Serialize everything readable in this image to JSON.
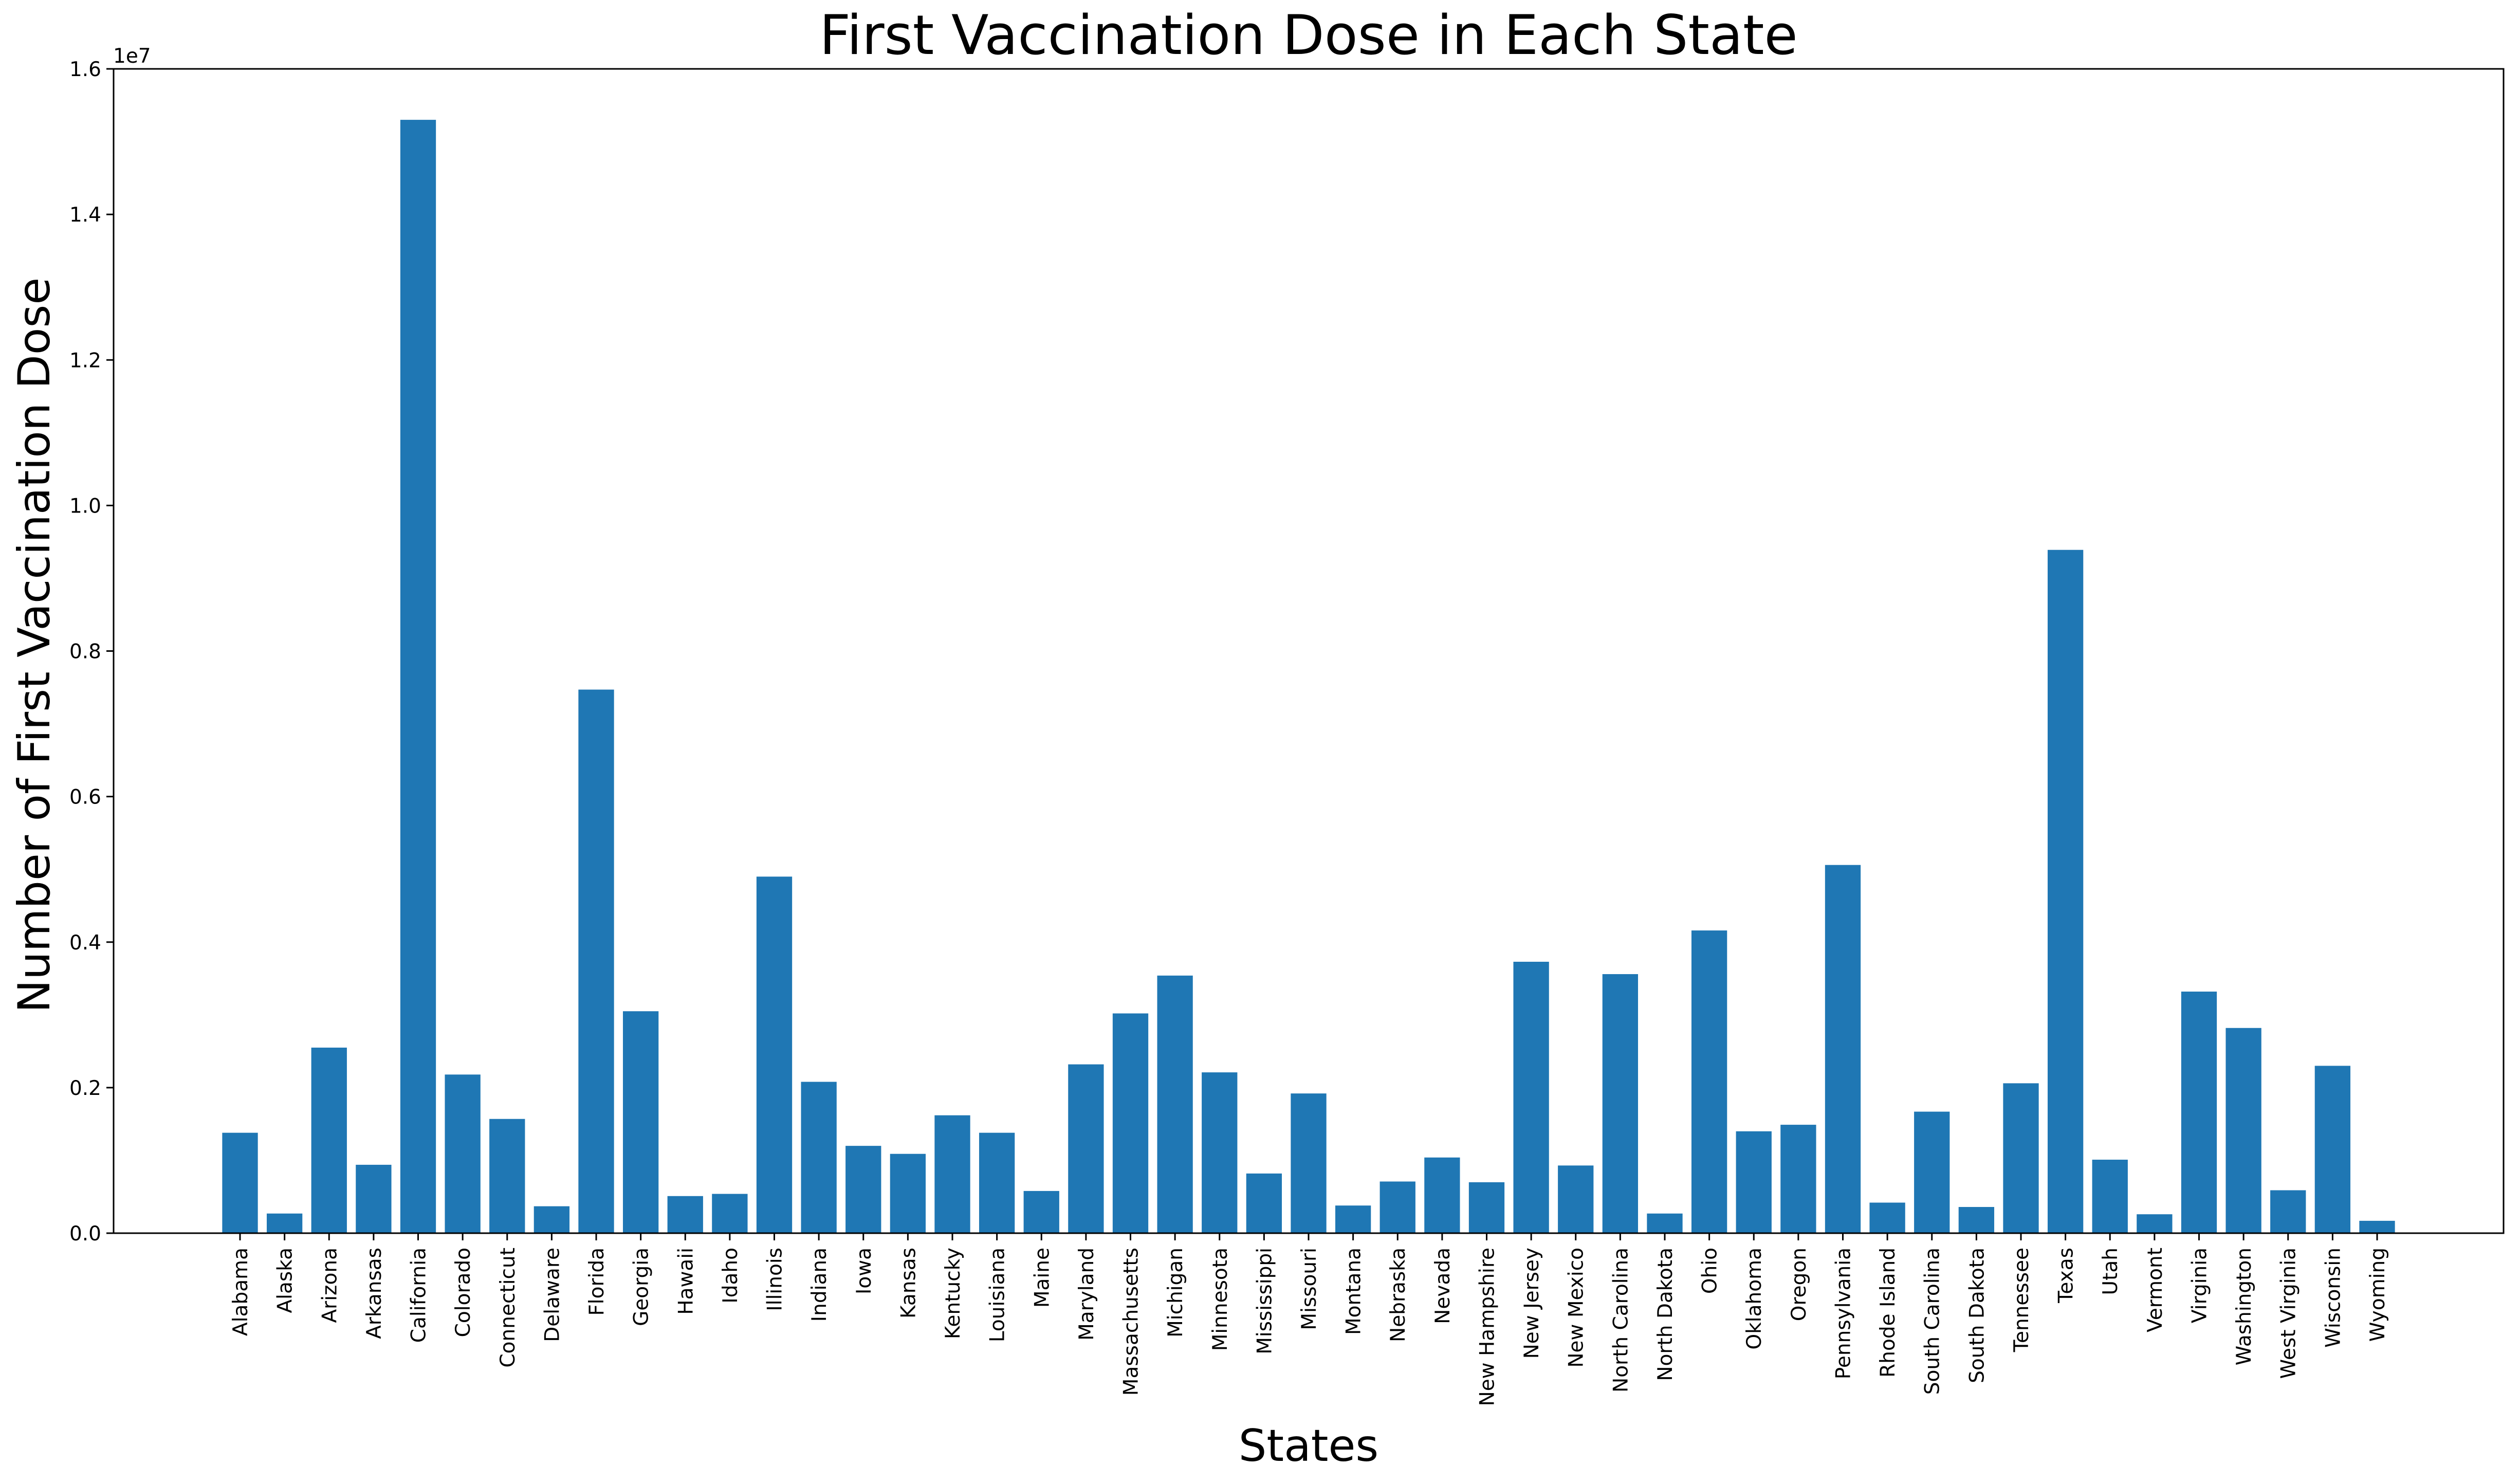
{
  "chart_data": {
    "type": "bar",
    "title": "First Vaccination Dose in Each State",
    "xlabel": "States",
    "ylabel": "Number of First Vaccination Dose",
    "y_offset_label": "1e7",
    "ylim": [
      0,
      16000000
    ],
    "yticks": [
      0,
      2000000,
      4000000,
      6000000,
      8000000,
      10000000,
      12000000,
      14000000,
      16000000
    ],
    "ytick_labels": [
      "0.0",
      "0.2",
      "0.4",
      "0.6",
      "0.8",
      "1.0",
      "1.2",
      "1.4",
      "1.6"
    ],
    "bar_color": "#1f77b4",
    "grid": false,
    "legend": "none",
    "categories": [
      "Alabama",
      "Alaska",
      "Arizona",
      "Arkansas",
      "California",
      "Colorado",
      "Connecticut",
      "Delaware",
      "Florida",
      "Georgia",
      "Hawaii",
      "Idaho",
      "Illinois",
      "Indiana",
      "Iowa",
      "Kansas",
      "Kentucky",
      "Louisiana",
      "Maine",
      "Maryland",
      "Massachusetts",
      "Michigan",
      "Minnesota",
      "Mississippi",
      "Missouri",
      "Montana",
      "Nebraska",
      "Nevada",
      "New Hampshire",
      "New Jersey",
      "New Mexico",
      "North Carolina",
      "North Dakota",
      "Ohio",
      "Oklahoma",
      "Oregon",
      "Pennsylvania",
      "Rhode Island",
      "South Carolina",
      "South Dakota",
      "Tennessee",
      "Texas",
      "Utah",
      "Vermont",
      "Virginia",
      "Washington",
      "West Virginia",
      "Wisconsin",
      "Wyoming"
    ],
    "values": [
      1380000,
      270000,
      2550000,
      940000,
      15300000,
      2180000,
      1570000,
      370000,
      7470000,
      3050000,
      510000,
      540000,
      4900000,
      2080000,
      1200000,
      1090000,
      1620000,
      1380000,
      580000,
      2320000,
      3020000,
      3540000,
      2210000,
      820000,
      1920000,
      380000,
      710000,
      1040000,
      700000,
      3730000,
      930000,
      3560000,
      270000,
      4160000,
      1400000,
      1490000,
      5060000,
      420000,
      1670000,
      360000,
      2060000,
      9390000,
      1010000,
      260000,
      3320000,
      2820000,
      590000,
      2300000,
      170000
    ]
  }
}
